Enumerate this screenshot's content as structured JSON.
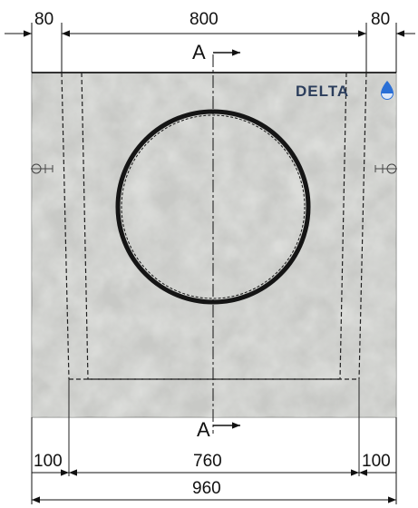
{
  "dimensions": {
    "top_left": "80",
    "top_middle": "800",
    "top_right": "80",
    "bottom_left": "100",
    "bottom_middle": "760",
    "bottom_right": "100",
    "overall_width": "960"
  },
  "section": {
    "top_label": "A",
    "bottom_label": "A"
  },
  "logo": {
    "text": "DELTA",
    "text_color": "#2c3e5c",
    "drop_color": "#2a6fd6"
  },
  "colors": {
    "concrete": "#c8c9c6",
    "line": "#111111",
    "ring": "#151515"
  }
}
